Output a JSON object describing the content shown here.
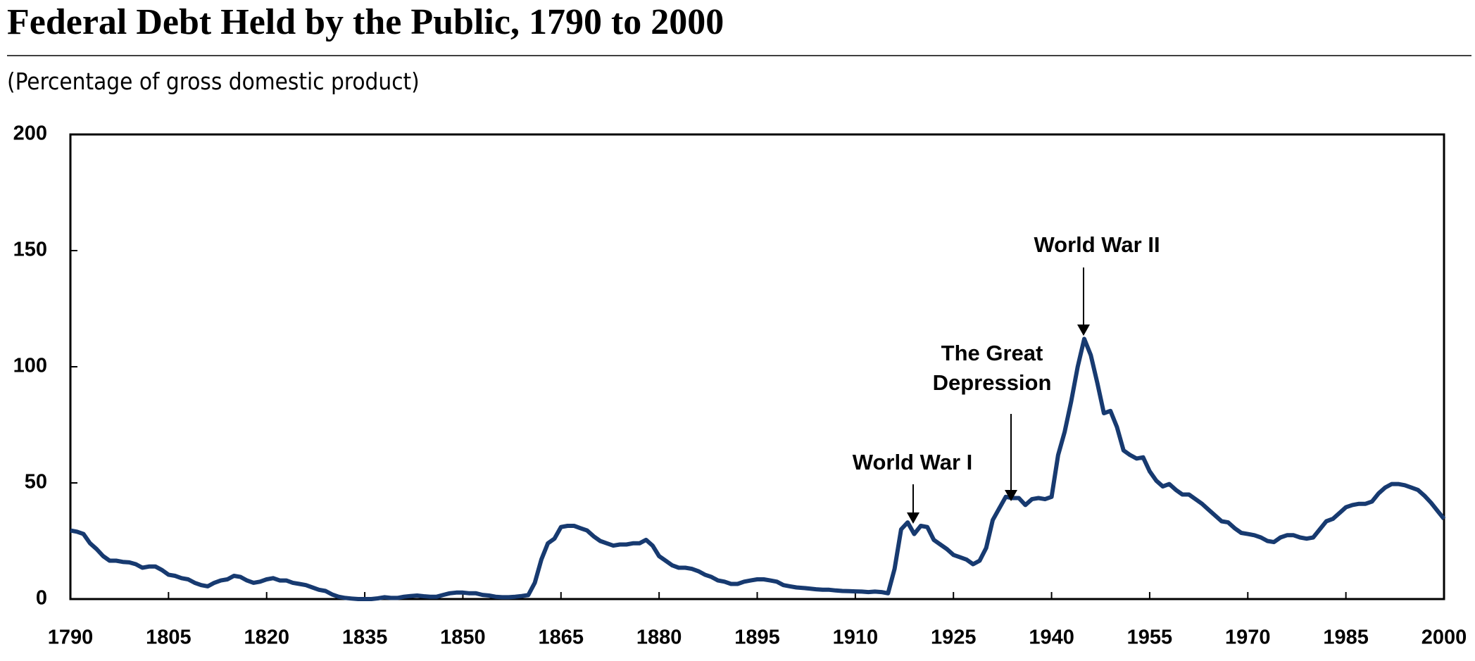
{
  "chart_data": {
    "type": "line",
    "title": "Federal Debt Held by the Public, 1790 to 2000",
    "subtitle": "(Percentage of gross domestic product)",
    "annotations": [
      {
        "lines": [
          "World War I"
        ]
      },
      {
        "lines": [
          "The Great",
          "Depression"
        ]
      },
      {
        "lines": [
          "World War II"
        ]
      }
    ],
    "x": [
      1790,
      1791,
      1792,
      1793,
      1794,
      1795,
      1796,
      1797,
      1798,
      1799,
      1800,
      1801,
      1802,
      1803,
      1804,
      1805,
      1806,
      1807,
      1808,
      1809,
      1810,
      1811,
      1812,
      1813,
      1814,
      1815,
      1816,
      1817,
      1818,
      1819,
      1820,
      1821,
      1822,
      1823,
      1824,
      1825,
      1826,
      1827,
      1828,
      1829,
      1830,
      1831,
      1832,
      1833,
      1834,
      1835,
      1836,
      1837,
      1838,
      1839,
      1840,
      1841,
      1842,
      1843,
      1844,
      1845,
      1846,
      1847,
      1848,
      1849,
      1850,
      1851,
      1852,
      1853,
      1854,
      1855,
      1856,
      1857,
      1858,
      1859,
      1860,
      1861,
      1862,
      1863,
      1864,
      1865,
      1866,
      1867,
      1868,
      1869,
      1870,
      1871,
      1872,
      1873,
      1874,
      1875,
      1876,
      1877,
      1878,
      1879,
      1880,
      1881,
      1882,
      1883,
      1884,
      1885,
      1886,
      1887,
      1888,
      1889,
      1890,
      1891,
      1892,
      1893,
      1894,
      1895,
      1896,
      1897,
      1898,
      1899,
      1900,
      1901,
      1902,
      1903,
      1904,
      1905,
      1906,
      1907,
      1908,
      1909,
      1910,
      1911,
      1912,
      1913,
      1914,
      1915,
      1916,
      1917,
      1918,
      1919,
      1920,
      1921,
      1922,
      1923,
      1924,
      1925,
      1926,
      1927,
      1928,
      1929,
      1930,
      1931,
      1932,
      1933,
      1934,
      1935,
      1936,
      1937,
      1938,
      1939,
      1940,
      1941,
      1942,
      1943,
      1944,
      1945,
      1946,
      1947,
      1948,
      1949,
      1950,
      1951,
      1952,
      1953,
      1954,
      1955,
      1956,
      1957,
      1958,
      1959,
      1960,
      1961,
      1962,
      1963,
      1964,
      1965,
      1966,
      1967,
      1968,
      1969,
      1970,
      1971,
      1972,
      1973,
      1974,
      1975,
      1976,
      1977,
      1978,
      1979,
      1980,
      1981,
      1982,
      1983,
      1984,
      1985,
      1986,
      1987,
      1988,
      1989,
      1990,
      1991,
      1992,
      1993,
      1994,
      1995,
      1996,
      1997,
      1998,
      1999,
      2000
    ],
    "series": [
      {
        "name": "Federal debt held by the public",
        "color": "#173a70",
        "values": [
          29.5,
          29,
          28,
          24,
          21.5,
          18.5,
          16.5,
          16.5,
          16,
          15.8,
          15,
          13.5,
          14,
          14,
          12.5,
          10.5,
          10,
          9,
          8.5,
          7,
          6,
          5.5,
          7,
          8,
          8.5,
          10,
          9.5,
          8,
          7,
          7.5,
          8.5,
          9,
          8,
          8,
          7,
          6.5,
          6,
          5,
          4,
          3.5,
          2,
          1,
          0.5,
          0.2,
          0,
          0,
          0,
          0.3,
          0.8,
          0.5,
          0.5,
          1,
          1.3,
          1.5,
          1.2,
          1,
          1,
          1.8,
          2.5,
          2.8,
          2.8,
          2.5,
          2.5,
          1.8,
          1.5,
          1,
          0.8,
          0.8,
          1,
          1.3,
          1.7,
          7,
          17,
          24,
          26,
          31,
          31.5,
          31.5,
          30.5,
          29.5,
          27,
          25,
          24,
          23,
          23.5,
          23.5,
          24,
          24,
          25.5,
          23,
          18.5,
          16.5,
          14.5,
          13.5,
          13.5,
          13,
          12,
          10.5,
          9.5,
          8,
          7.5,
          6.5,
          6.5,
          7.5,
          8,
          8.5,
          8.5,
          8,
          7.5,
          6,
          5.5,
          5,
          4.8,
          4.5,
          4.2,
          4,
          4,
          3.7,
          3.5,
          3.4,
          3.3,
          3.2,
          3,
          3.2,
          3,
          2.5,
          13,
          30,
          33,
          28,
          31.5,
          31,
          25.5,
          23.5,
          21.5,
          19,
          18,
          17,
          15,
          16.5,
          22,
          34,
          39,
          44,
          43.5,
          43.5,
          40.5,
          43,
          43.5,
          43,
          44,
          62,
          72,
          85,
          100,
          112,
          105,
          93,
          80,
          81,
          74,
          64,
          62,
          60.5,
          61,
          55,
          51,
          48.5,
          49.5,
          47,
          45,
          45,
          43,
          41,
          38.5,
          36,
          33.5,
          33,
          30.5,
          28.5,
          28,
          27.5,
          26.5,
          25,
          24.5,
          26.5,
          27.5,
          27.5,
          26.5,
          26,
          26.5,
          30,
          33.5,
          34.5,
          37,
          39.5,
          40.5,
          41,
          41,
          42,
          45.5,
          48,
          49.5,
          49.5,
          49,
          48,
          47,
          44.5,
          41.5,
          38,
          34.5
        ]
      }
    ],
    "xlim": [
      1790,
      2000
    ],
    "xticks": [
      1790,
      1805,
      1820,
      1835,
      1850,
      1865,
      1880,
      1895,
      1910,
      1925,
      1940,
      1955,
      1970,
      1985,
      2000
    ],
    "ylim": [
      0,
      200
    ],
    "yticks": [
      0,
      50,
      100,
      150,
      200
    ]
  }
}
